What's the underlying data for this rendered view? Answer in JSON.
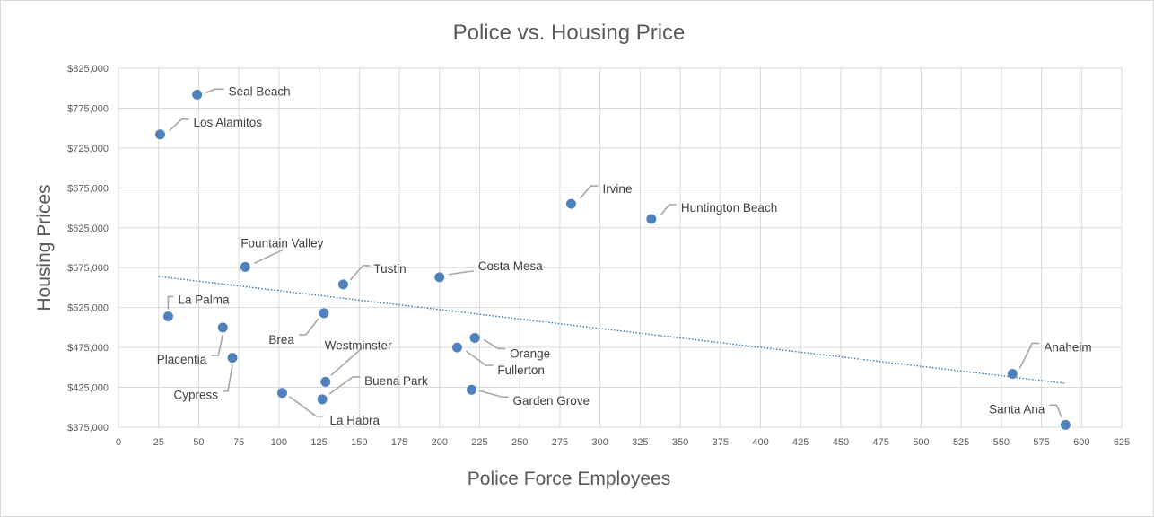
{
  "colors": {
    "series": "#4f81bd",
    "trendline": "#2e75b6",
    "grid": "#d9d9d9",
    "text": "#595959"
  },
  "chart_data": {
    "type": "scatter",
    "title": "Police vs. Housing Price",
    "xlabel": "Police Force Employees",
    "ylabel": "Housing Prices",
    "xlim": [
      0,
      625
    ],
    "ylim": [
      375000,
      825000
    ],
    "x_ticks": [
      "0",
      "25",
      "50",
      "75",
      "100",
      "125",
      "150",
      "175",
      "200",
      "225",
      "250",
      "275",
      "300",
      "325",
      "350",
      "375",
      "400",
      "425",
      "450",
      "475",
      "500",
      "525",
      "550",
      "575",
      "600",
      "625"
    ],
    "y_ticks": [
      "$375,000",
      "$425,000",
      "$475,000",
      "$525,000",
      "$575,000",
      "$625,000",
      "$675,000",
      "$725,000",
      "$775,000",
      "$825,000"
    ],
    "grid": true,
    "legend": "none",
    "trendline": {
      "type": "linear",
      "from": {
        "x": 25,
        "y": 564000
      },
      "to": {
        "x": 590,
        "y": 430000
      }
    },
    "points": [
      {
        "name": "Seal Beach",
        "x": 49,
        "y": 792000
      },
      {
        "name": "Los Alamitos",
        "x": 26,
        "y": 742000
      },
      {
        "name": "Irvine",
        "x": 282,
        "y": 655000
      },
      {
        "name": "Huntington Beach",
        "x": 332,
        "y": 636000
      },
      {
        "name": "Fountain Valley",
        "x": 79,
        "y": 576000
      },
      {
        "name": "Tustin",
        "x": 140,
        "y": 554000
      },
      {
        "name": "Costa Mesa",
        "x": 200,
        "y": 563000
      },
      {
        "name": "La Palma",
        "x": 31,
        "y": 514000
      },
      {
        "name": "Brea",
        "x": 128,
        "y": 518000
      },
      {
        "name": "Placentia",
        "x": 65,
        "y": 500000
      },
      {
        "name": "Westminster",
        "x": 129,
        "y": 432000
      },
      {
        "name": "Orange",
        "x": 222,
        "y": 487000
      },
      {
        "name": "Fullerton",
        "x": 211,
        "y": 475000
      },
      {
        "name": "Cypress",
        "x": 71,
        "y": 462000
      },
      {
        "name": "Buena Park",
        "x": 127,
        "y": 410000
      },
      {
        "name": "La Habra",
        "x": 102,
        "y": 418000
      },
      {
        "name": "Garden Grove",
        "x": 220,
        "y": 422000
      },
      {
        "name": "Anaheim",
        "x": 557,
        "y": 442000
      },
      {
        "name": "Santa Ana",
        "x": 590,
        "y": 378000
      }
    ]
  }
}
